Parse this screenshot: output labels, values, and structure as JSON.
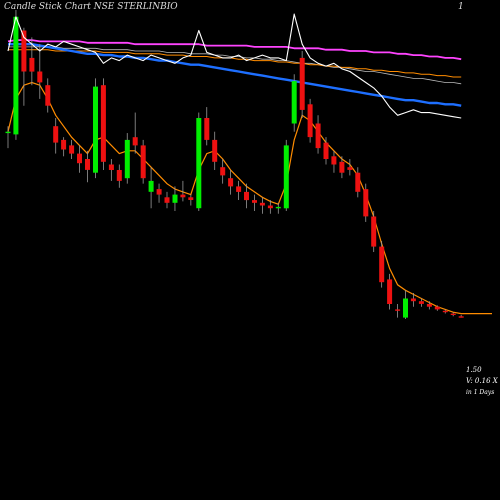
{
  "header": {
    "left_text": "Candle Stick Chart NSE STERLINBIO",
    "right_text": "1"
  },
  "info": {
    "price": "1.50",
    "volume": "V: 0.16  X",
    "period": "in 1 Days"
  },
  "colors": {
    "background": "#000000",
    "up_candle": "#00ee00",
    "down_candle": "#ee1111",
    "close_line": "#ffffff",
    "ma_short": "#ff8c00",
    "ma_long_blue": "#1e6fff",
    "ma_magenta": "#ff44ff",
    "ma_orange_long": "#ff8c00",
    "ma_grey": "#bbbbbb"
  },
  "chart_data": {
    "type": "candlestick",
    "ylim": [
      1.3,
      3.75
    ],
    "grid": false,
    "candles": [
      {
        "o": 2.85,
        "h": 2.9,
        "l": 2.74,
        "c": 2.86,
        "up": true
      },
      {
        "o": 2.84,
        "h": 3.75,
        "l": 2.8,
        "c": 3.7,
        "up": true
      },
      {
        "o": 3.6,
        "h": 3.62,
        "l": 3.05,
        "c": 3.3,
        "up": false
      },
      {
        "o": 3.4,
        "h": 3.55,
        "l": 3.2,
        "c": 3.3,
        "up": false
      },
      {
        "o": 3.3,
        "h": 3.5,
        "l": 3.1,
        "c": 3.22,
        "up": false
      },
      {
        "o": 3.2,
        "h": 3.25,
        "l": 3.0,
        "c": 3.05,
        "up": false
      },
      {
        "o": 2.9,
        "h": 2.96,
        "l": 2.7,
        "c": 2.78,
        "up": false
      },
      {
        "o": 2.8,
        "h": 2.82,
        "l": 2.68,
        "c": 2.73,
        "up": false
      },
      {
        "o": 2.76,
        "h": 2.8,
        "l": 2.66,
        "c": 2.7,
        "up": false
      },
      {
        "o": 2.7,
        "h": 2.76,
        "l": 2.56,
        "c": 2.63,
        "up": false
      },
      {
        "o": 2.66,
        "h": 2.72,
        "l": 2.49,
        "c": 2.58,
        "up": false
      },
      {
        "o": 2.56,
        "h": 3.25,
        "l": 2.52,
        "c": 3.19,
        "up": true
      },
      {
        "o": 3.2,
        "h": 3.25,
        "l": 2.58,
        "c": 2.64,
        "up": false
      },
      {
        "o": 2.62,
        "h": 2.66,
        "l": 2.5,
        "c": 2.58,
        "up": false
      },
      {
        "o": 2.58,
        "h": 2.62,
        "l": 2.45,
        "c": 2.5,
        "up": false
      },
      {
        "o": 2.52,
        "h": 2.85,
        "l": 2.48,
        "c": 2.8,
        "up": true
      },
      {
        "o": 2.82,
        "h": 3.0,
        "l": 2.7,
        "c": 2.76,
        "up": false
      },
      {
        "o": 2.76,
        "h": 2.8,
        "l": 2.48,
        "c": 2.52,
        "up": false
      },
      {
        "o": 2.5,
        "h": 2.6,
        "l": 2.3,
        "c": 2.42,
        "up": true
      },
      {
        "o": 2.44,
        "h": 2.48,
        "l": 2.34,
        "c": 2.4,
        "up": false
      },
      {
        "o": 2.38,
        "h": 2.42,
        "l": 2.3,
        "c": 2.34,
        "up": false
      },
      {
        "o": 2.34,
        "h": 2.46,
        "l": 2.28,
        "c": 2.4,
        "up": true
      },
      {
        "o": 2.4,
        "h": 2.5,
        "l": 2.35,
        "c": 2.38,
        "up": false
      },
      {
        "o": 2.38,
        "h": 2.4,
        "l": 2.32,
        "c": 2.36,
        "up": false
      },
      {
        "o": 2.3,
        "h": 3.0,
        "l": 2.28,
        "c": 2.96,
        "up": true
      },
      {
        "o": 2.96,
        "h": 3.04,
        "l": 2.76,
        "c": 2.8,
        "up": false
      },
      {
        "o": 2.8,
        "h": 2.86,
        "l": 2.58,
        "c": 2.64,
        "up": false
      },
      {
        "o": 2.6,
        "h": 2.66,
        "l": 2.48,
        "c": 2.54,
        "up": false
      },
      {
        "o": 2.52,
        "h": 2.58,
        "l": 2.4,
        "c": 2.46,
        "up": false
      },
      {
        "o": 2.46,
        "h": 2.5,
        "l": 2.36,
        "c": 2.42,
        "up": false
      },
      {
        "o": 2.42,
        "h": 2.48,
        "l": 2.3,
        "c": 2.36,
        "up": false
      },
      {
        "o": 2.36,
        "h": 2.4,
        "l": 2.28,
        "c": 2.34,
        "up": false
      },
      {
        "o": 2.34,
        "h": 2.38,
        "l": 2.26,
        "c": 2.32,
        "up": false
      },
      {
        "o": 2.32,
        "h": 2.36,
        "l": 2.26,
        "c": 2.3,
        "up": false
      },
      {
        "o": 2.3,
        "h": 2.34,
        "l": 2.26,
        "c": 2.31,
        "up": true
      },
      {
        "o": 2.3,
        "h": 2.8,
        "l": 2.28,
        "c": 2.76,
        "up": true
      },
      {
        "o": 2.92,
        "h": 3.28,
        "l": 2.86,
        "c": 3.23,
        "up": true
      },
      {
        "o": 3.4,
        "h": 3.45,
        "l": 2.96,
        "c": 3.02,
        "up": false
      },
      {
        "o": 3.06,
        "h": 3.1,
        "l": 2.78,
        "c": 2.82,
        "up": false
      },
      {
        "o": 2.92,
        "h": 2.98,
        "l": 2.7,
        "c": 2.74,
        "up": false
      },
      {
        "o": 2.78,
        "h": 2.82,
        "l": 2.62,
        "c": 2.66,
        "up": false
      },
      {
        "o": 2.68,
        "h": 2.72,
        "l": 2.56,
        "c": 2.62,
        "up": false
      },
      {
        "o": 2.64,
        "h": 2.68,
        "l": 2.52,
        "c": 2.56,
        "up": false
      },
      {
        "o": 2.58,
        "h": 2.66,
        "l": 2.54,
        "c": 2.6,
        "up": false
      },
      {
        "o": 2.56,
        "h": 2.6,
        "l": 2.38,
        "c": 2.42,
        "up": false
      },
      {
        "o": 2.44,
        "h": 2.48,
        "l": 2.2,
        "c": 2.24,
        "up": false
      },
      {
        "o": 2.24,
        "h": 2.28,
        "l": 1.98,
        "c": 2.02,
        "up": false
      },
      {
        "o": 2.02,
        "h": 2.06,
        "l": 1.72,
        "c": 1.76,
        "up": false
      },
      {
        "o": 1.78,
        "h": 1.82,
        "l": 1.56,
        "c": 1.6,
        "up": false
      },
      {
        "o": 1.56,
        "h": 1.6,
        "l": 1.5,
        "c": 1.55,
        "up": false
      },
      {
        "o": 1.5,
        "h": 1.7,
        "l": 1.49,
        "c": 1.64,
        "up": true
      },
      {
        "o": 1.64,
        "h": 1.68,
        "l": 1.58,
        "c": 1.62,
        "up": false
      },
      {
        "o": 1.62,
        "h": 1.64,
        "l": 1.58,
        "c": 1.6,
        "up": false
      },
      {
        "o": 1.6,
        "h": 1.62,
        "l": 1.56,
        "c": 1.58,
        "up": false
      },
      {
        "o": 1.58,
        "h": 1.59,
        "l": 1.55,
        "c": 1.56,
        "up": false
      },
      {
        "o": 1.55,
        "h": 1.56,
        "l": 1.53,
        "c": 1.54,
        "up": false
      },
      {
        "o": 1.53,
        "h": 1.54,
        "l": 1.51,
        "c": 1.52,
        "up": false
      },
      {
        "o": 1.51,
        "h": 1.52,
        "l": 1.5,
        "c": 1.5,
        "up": false
      }
    ],
    "close_line": [
      3.45,
      3.7,
      3.55,
      3.5,
      3.45,
      3.5,
      3.48,
      3.52,
      3.5,
      3.48,
      3.46,
      3.44,
      3.36,
      3.4,
      3.38,
      3.42,
      3.4,
      3.38,
      3.42,
      3.4,
      3.38,
      3.36,
      3.4,
      3.42,
      3.6,
      3.44,
      3.42,
      3.4,
      3.4,
      3.42,
      3.38,
      3.4,
      3.42,
      3.4,
      3.4,
      3.38,
      3.72,
      3.5,
      3.4,
      3.36,
      3.34,
      3.36,
      3.32,
      3.3,
      3.26,
      3.22,
      3.18,
      3.12,
      3.04,
      2.98,
      3.0,
      3.02,
      3.0,
      3.0,
      2.99,
      2.98,
      2.97,
      2.96
    ],
    "ma_short": [
      2.86,
      3.1,
      3.2,
      3.22,
      3.2,
      3.1,
      2.98,
      2.9,
      2.82,
      2.76,
      2.7,
      2.8,
      2.82,
      2.76,
      2.7,
      2.72,
      2.72,
      2.66,
      2.6,
      2.54,
      2.48,
      2.44,
      2.42,
      2.4,
      2.58,
      2.7,
      2.72,
      2.66,
      2.58,
      2.52,
      2.46,
      2.42,
      2.38,
      2.35,
      2.33,
      2.48,
      2.8,
      2.98,
      2.94,
      2.86,
      2.78,
      2.72,
      2.66,
      2.62,
      2.54,
      2.4,
      2.24,
      2.04,
      1.86,
      1.74,
      1.7,
      1.67,
      1.64,
      1.61,
      1.58,
      1.56,
      1.54,
      1.53
    ],
    "ma_blue": [
      3.5,
      3.5,
      3.5,
      3.5,
      3.49,
      3.48,
      3.47,
      3.46,
      3.45,
      3.44,
      3.43,
      3.43,
      3.42,
      3.42,
      3.41,
      3.41,
      3.4,
      3.4,
      3.39,
      3.38,
      3.38,
      3.37,
      3.36,
      3.35,
      3.35,
      3.34,
      3.33,
      3.32,
      3.31,
      3.3,
      3.29,
      3.28,
      3.27,
      3.26,
      3.25,
      3.24,
      3.23,
      3.22,
      3.21,
      3.2,
      3.19,
      3.18,
      3.17,
      3.16,
      3.15,
      3.14,
      3.13,
      3.12,
      3.11,
      3.1,
      3.09,
      3.09,
      3.08,
      3.07,
      3.07,
      3.06,
      3.06,
      3.05
    ],
    "ma_magenta": [
      3.52,
      3.53,
      3.53,
      3.53,
      3.52,
      3.52,
      3.52,
      3.52,
      3.52,
      3.52,
      3.51,
      3.51,
      3.51,
      3.51,
      3.51,
      3.51,
      3.5,
      3.5,
      3.5,
      3.5,
      3.5,
      3.5,
      3.5,
      3.5,
      3.5,
      3.49,
      3.49,
      3.49,
      3.49,
      3.49,
      3.49,
      3.48,
      3.48,
      3.48,
      3.48,
      3.48,
      3.47,
      3.47,
      3.47,
      3.47,
      3.46,
      3.46,
      3.46,
      3.45,
      3.45,
      3.45,
      3.44,
      3.44,
      3.44,
      3.43,
      3.43,
      3.42,
      3.42,
      3.41,
      3.41,
      3.4,
      3.4,
      3.39
    ],
    "ma_orange_long": [
      3.46,
      3.46,
      3.46,
      3.46,
      3.46,
      3.46,
      3.45,
      3.45,
      3.45,
      3.45,
      3.45,
      3.45,
      3.44,
      3.44,
      3.44,
      3.44,
      3.43,
      3.43,
      3.43,
      3.43,
      3.42,
      3.42,
      3.42,
      3.41,
      3.41,
      3.41,
      3.4,
      3.4,
      3.4,
      3.39,
      3.39,
      3.38,
      3.38,
      3.38,
      3.37,
      3.37,
      3.36,
      3.36,
      3.35,
      3.35,
      3.34,
      3.34,
      3.33,
      3.33,
      3.32,
      3.32,
      3.31,
      3.31,
      3.3,
      3.3,
      3.29,
      3.29,
      3.28,
      3.28,
      3.27,
      3.27,
      3.26,
      3.26
    ],
    "ma_grey": [
      3.48,
      3.48,
      3.48,
      3.48,
      3.48,
      3.48,
      3.48,
      3.47,
      3.47,
      3.47,
      3.47,
      3.47,
      3.46,
      3.46,
      3.46,
      3.46,
      3.45,
      3.45,
      3.45,
      3.45,
      3.44,
      3.44,
      3.44,
      3.43,
      3.43,
      3.43,
      3.42,
      3.42,
      3.41,
      3.41,
      3.4,
      3.4,
      3.39,
      3.39,
      3.38,
      3.38,
      3.37,
      3.36,
      3.36,
      3.35,
      3.34,
      3.33,
      3.33,
      3.32,
      3.31,
      3.3,
      3.3,
      3.29,
      3.28,
      3.27,
      3.26,
      3.25,
      3.25,
      3.24,
      3.23,
      3.22,
      3.22,
      3.21
    ]
  }
}
